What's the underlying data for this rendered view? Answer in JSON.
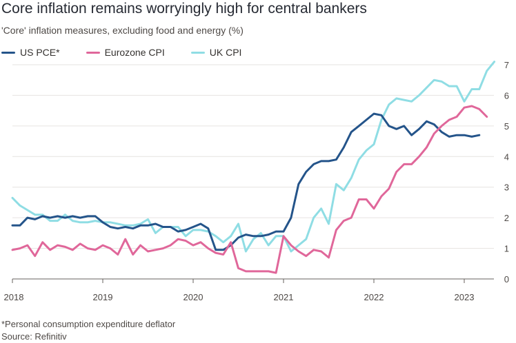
{
  "chart_data": {
    "type": "line",
    "title": "Core inflation remains worryingly high for central bankers",
    "subtitle": "'Core' inflation measures, excluding food and energy (%)",
    "xlabel": "",
    "ylabel": "",
    "xlim": [
      2018.0,
      2023.42
    ],
    "ylim": [
      0,
      7
    ],
    "yticks": [
      0,
      1,
      2,
      3,
      4,
      5,
      6,
      7
    ],
    "xticks": [
      {
        "label": "2018",
        "value": 2018.0
      },
      {
        "label": "2019",
        "value": 2019.0
      },
      {
        "label": "2020",
        "value": 2020.0
      },
      {
        "label": "2021",
        "value": 2021.0
      },
      {
        "label": "2022",
        "value": 2022.0
      },
      {
        "label": "2023",
        "value": 2023.0
      }
    ],
    "grid": true,
    "legend": "top-left",
    "series": [
      {
        "name": "US PCE*",
        "color": "#24548a",
        "start": 2018.0,
        "values": [
          1.75,
          1.75,
          2.0,
          1.95,
          2.05,
          2.0,
          2.05,
          2.0,
          2.05,
          2.0,
          2.05,
          2.05,
          1.85,
          1.7,
          1.65,
          1.7,
          1.65,
          1.75,
          1.75,
          1.8,
          1.7,
          1.7,
          1.55,
          1.6,
          1.7,
          1.8,
          1.65,
          0.95,
          0.95,
          1.1,
          1.35,
          1.45,
          1.4,
          1.4,
          1.45,
          1.55,
          1.55,
          2.0,
          3.1,
          3.5,
          3.75,
          3.85,
          3.85,
          3.9,
          4.3,
          4.8,
          5.0,
          5.2,
          5.4,
          5.35,
          5.0,
          4.9,
          5.0,
          4.7,
          4.9,
          5.15,
          5.05,
          4.8,
          4.65,
          4.7,
          4.7,
          4.65,
          4.7
        ]
      },
      {
        "name": "Eurozone CPI",
        "color": "#e0679a",
        "start": 2018.0,
        "values": [
          0.95,
          1.0,
          1.1,
          0.75,
          1.2,
          0.95,
          1.1,
          1.05,
          0.95,
          1.15,
          1.0,
          0.95,
          1.1,
          1.0,
          0.8,
          1.3,
          0.8,
          1.1,
          0.9,
          0.95,
          1.0,
          1.1,
          1.3,
          1.25,
          1.1,
          1.2,
          1.0,
          0.85,
          0.8,
          1.2,
          0.35,
          0.25,
          0.25,
          0.25,
          0.25,
          0.2,
          1.4,
          1.1,
          0.9,
          0.75,
          0.95,
          0.9,
          0.7,
          1.6,
          1.9,
          2.0,
          2.6,
          2.6,
          2.3,
          2.7,
          2.95,
          3.5,
          3.75,
          3.75,
          4.0,
          4.3,
          4.75,
          5.0,
          5.2,
          5.3,
          5.6,
          5.65,
          5.55,
          5.3
        ]
      },
      {
        "name": "UK CPI",
        "color": "#8fdde4",
        "start": 2018.0,
        "values": [
          2.65,
          2.4,
          2.25,
          2.1,
          2.1,
          1.9,
          1.9,
          2.1,
          1.9,
          1.85,
          1.85,
          1.9,
          1.85,
          1.85,
          1.8,
          1.75,
          1.75,
          1.8,
          1.95,
          1.5,
          1.7,
          1.7,
          1.7,
          1.4,
          1.6,
          1.6,
          1.55,
          1.4,
          1.2,
          1.4,
          1.8,
          0.9,
          1.3,
          1.5,
          1.1,
          1.4,
          1.4,
          0.9,
          1.1,
          1.3,
          2.0,
          2.3,
          1.8,
          3.1,
          2.9,
          3.3,
          3.9,
          4.2,
          4.4,
          5.2,
          5.7,
          5.9,
          5.85,
          5.8,
          6.0,
          6.25,
          6.5,
          6.45,
          6.3,
          6.3,
          5.8,
          6.2,
          6.2,
          6.8,
          7.1
        ]
      }
    ]
  },
  "footnote": "*Personal consumption expenditure deflator",
  "source": "Source: Refinitiv"
}
